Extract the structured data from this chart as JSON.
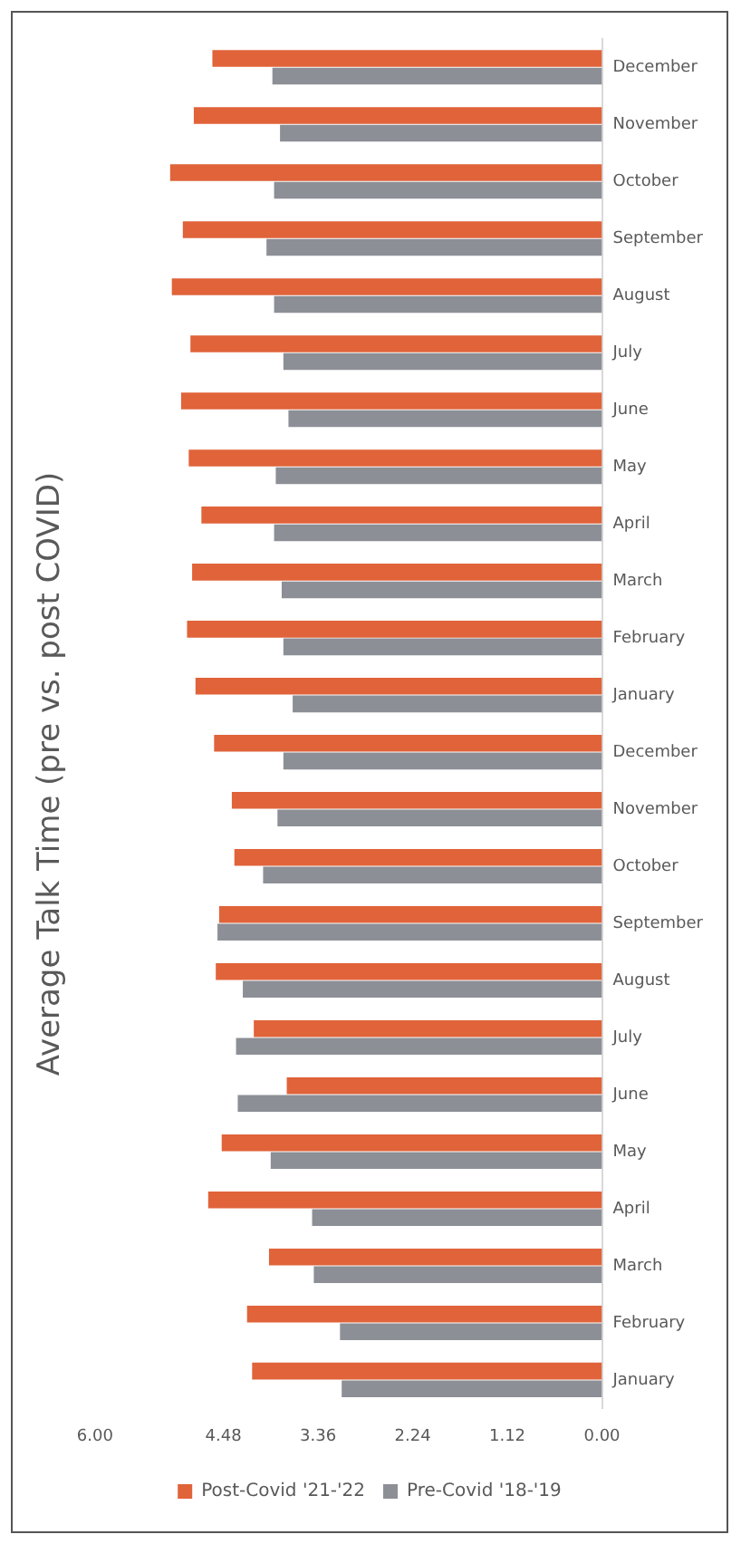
{
  "chart_data": {
    "type": "bar",
    "orientation": "horizontal",
    "title": "Average Talk Time (pre vs. post COVID)",
    "categories": [
      "December",
      "November",
      "October",
      "September",
      "August",
      "July",
      "June",
      "May",
      "April",
      "March",
      "February",
      "January",
      "December",
      "November",
      "October",
      "September",
      "August",
      "July",
      "June",
      "May",
      "April",
      "March",
      "February",
      "January"
    ],
    "series": [
      {
        "name": "Post-Covid '21-'22",
        "color": "#e0633a",
        "values": [
          4.61,
          4.83,
          5.11,
          4.96,
          5.09,
          4.87,
          4.98,
          4.89,
          4.74,
          4.85,
          4.91,
          4.81,
          4.59,
          4.38,
          4.35,
          4.53,
          4.57,
          4.12,
          3.73,
          4.5,
          4.66,
          3.94,
          4.2,
          4.14
        ]
      },
      {
        "name": "Pre-Covid '18-'19",
        "color": "#8c8f96",
        "values": [
          3.9,
          3.81,
          3.88,
          3.97,
          3.88,
          3.77,
          3.71,
          3.86,
          3.88,
          3.79,
          3.77,
          3.66,
          3.77,
          3.84,
          4.01,
          4.55,
          4.25,
          4.33,
          4.31,
          3.92,
          3.43,
          3.41,
          3.1,
          3.08
        ]
      }
    ],
    "xlim": [
      6,
      0
    ],
    "xticks": [
      {
        "value": 0,
        "label": "0.00"
      },
      1.12,
      2.24,
      3.36,
      4.48,
      {
        "value": 6,
        "label": "6.00"
      }
    ],
    "grid": false,
    "legend": "bottom"
  }
}
